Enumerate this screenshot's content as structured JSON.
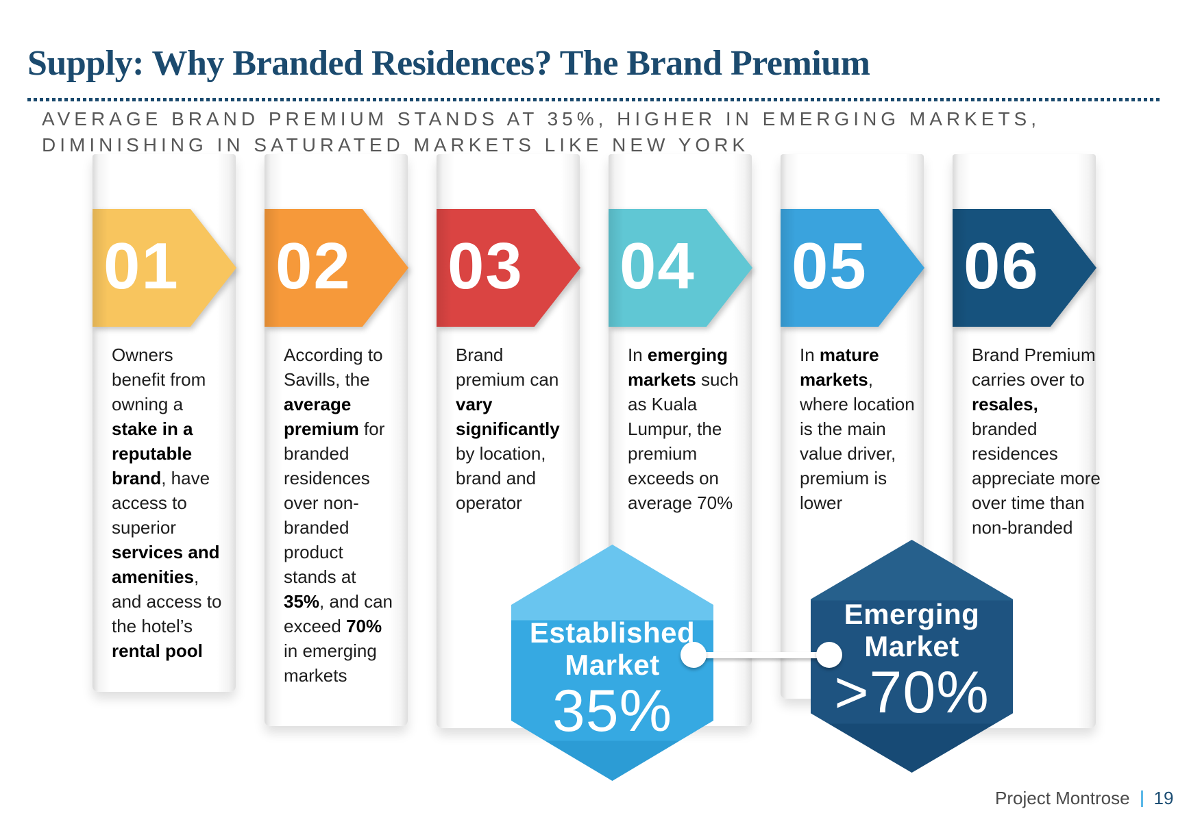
{
  "slide": {
    "title": "Supply: Why Branded Residences? The Brand Premium",
    "title_color": "#1b4a6e",
    "subtitle": {
      "line1": "AVERAGE BRAND PREMIUM STANDS AT 35%, HIGHER IN EMERGING MARKETS,",
      "line2": "DIMINISHING IN SATURATED MARKETS LIKE NEW YORK"
    },
    "footer": {
      "project": "Project Montrose",
      "separator_color": "#5bb8e8",
      "page": "19",
      "page_color": "#1d4e74"
    }
  },
  "steps": [
    {
      "number": "01",
      "color": "#f8c55e",
      "runs": [
        {
          "t": "Owners benefit from owning a ",
          "b": false
        },
        {
          "t": "stake in a reputable brand",
          "b": true
        },
        {
          "t": ", have access to superior ",
          "b": false
        },
        {
          "t": "services and amenities",
          "b": true
        },
        {
          "t": ", and access to the hotel’s ",
          "b": false
        },
        {
          "t": "rental pool",
          "b": true
        }
      ]
    },
    {
      "number": "02",
      "color": "#f6993a",
      "runs": [
        {
          "t": "According to Savills, the ",
          "b": false
        },
        {
          "t": "average premium",
          "b": true
        },
        {
          "t": " for branded residences over non-branded product stands at ",
          "b": false
        },
        {
          "t": "35%",
          "b": true
        },
        {
          "t": ", and can exceed ",
          "b": false
        },
        {
          "t": "70%",
          "b": true
        },
        {
          "t": " in emerging markets",
          "b": false
        }
      ]
    },
    {
      "number": "03",
      "color": "#da4442",
      "runs": [
        {
          "t": "Brand premium can ",
          "b": false
        },
        {
          "t": "vary significantly",
          "b": true
        },
        {
          "t": " by location, brand and operator",
          "b": false
        }
      ]
    },
    {
      "number": "04",
      "color": "#60c7d4",
      "runs": [
        {
          "t": "In ",
          "b": false
        },
        {
          "t": "emerging markets",
          "b": true
        },
        {
          "t": " such as Kuala Lumpur, the premium exceeds on average 70%",
          "b": false
        }
      ]
    },
    {
      "number": "05",
      "color": "#3aa3dd",
      "runs": [
        {
          "t": "In ",
          "b": false
        },
        {
          "t": "mature markets",
          "b": true
        },
        {
          "t": ", where location is the main value driver, premium is lower",
          "b": false
        }
      ]
    },
    {
      "number": "06",
      "color": "#16527d",
      "runs": [
        {
          "t": "Brand Premium carries over to ",
          "b": false
        },
        {
          "t": "resales,",
          "b": true
        },
        {
          "t": " branded residences appreciate more over time than non-branded",
          "b": false
        }
      ]
    }
  ],
  "hexagons": [
    {
      "id": "established-market",
      "label1": "Established",
      "label2": "Market",
      "value": "35%",
      "colors": {
        "top": "#69c5ef",
        "band": "#36a9e2",
        "bottom": "#2c9cd5"
      }
    },
    {
      "id": "emerging-market",
      "label1": "Emerging",
      "label2": "Market",
      "value": ">70%",
      "colors": {
        "top": "#26608c",
        "band": "#1e5380",
        "bottom": "#174a75"
      }
    }
  ]
}
